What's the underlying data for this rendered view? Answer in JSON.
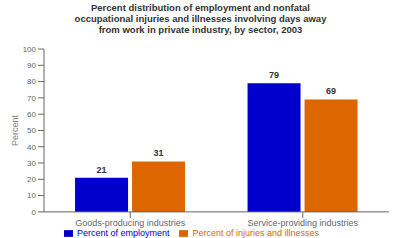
{
  "chart_data": {
    "type": "bar",
    "title": "Percent distribution of employment and nonfatal\noccupational injuries and illnesses involving days away\nfrom work in private industry, by sector, 2003",
    "categories": [
      "Goods-producing industries",
      "Service-providing industries"
    ],
    "series": [
      {
        "name": "Percent of employment",
        "color": "#0000cc",
        "values": [
          21,
          79
        ]
      },
      {
        "name": "Percent of injuries and illnesses",
        "color": "#dd6600",
        "values": [
          31,
          69
        ]
      }
    ],
    "ylabel": "Percent",
    "ylim": [
      0,
      100
    ],
    "yticks": [
      0,
      10,
      20,
      30,
      40,
      50,
      60,
      70,
      80,
      90,
      100
    ],
    "grid": false,
    "data_labels": true,
    "legend": "bottom"
  }
}
